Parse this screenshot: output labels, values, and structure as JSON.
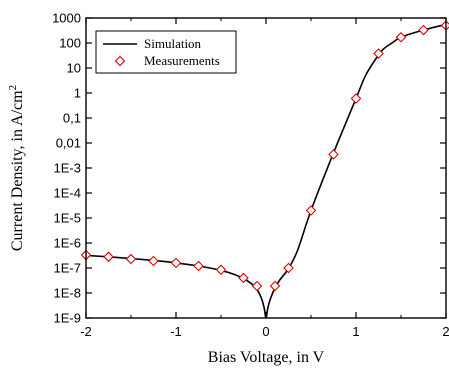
{
  "chart_data": {
    "type": "line",
    "xlabel": "Bias Voltage, in V",
    "ylabel_main": "Current Density, in A/cm",
    "ylabel_sup": "2",
    "xlim": [
      -2,
      2
    ],
    "ylim": [
      1e-09,
      1000
    ],
    "yscale": "log",
    "x_ticks": [
      -2,
      -1,
      0,
      1,
      2
    ],
    "x_tick_labels": [
      "-2",
      "-1",
      "0",
      "1",
      "2"
    ],
    "y_ticks": [
      1000,
      100,
      10,
      1,
      0.1,
      0.01,
      0.001,
      0.0001,
      1e-05,
      1e-06,
      1e-07,
      1e-08,
      1e-09
    ],
    "y_tick_labels": [
      "1000",
      "100",
      "10",
      "1",
      "0,1",
      "0,01",
      "1E-3",
      "1E-4",
      "1E-5",
      "1E-6",
      "1E-7",
      "1E-8",
      "1E-9"
    ],
    "grid": false,
    "legend_position": "top-left",
    "series": [
      {
        "name": "Simulation",
        "style": "line",
        "color": "#000000",
        "x": [
          -2.0,
          -1.75,
          -1.5,
          -1.25,
          -1.0,
          -0.75,
          -0.5,
          -0.35,
          -0.25,
          -0.15,
          -0.1,
          -0.05,
          -0.02,
          0.0,
          0.02,
          0.05,
          0.1,
          0.15,
          0.25,
          0.35,
          0.5,
          0.75,
          1.0,
          1.1,
          1.2,
          1.3,
          1.4,
          1.5,
          1.75,
          2.0
        ],
        "y": [
          3.2e-07,
          2.8e-07,
          2.4e-07,
          2e-07,
          1.6e-07,
          1.2e-07,
          8e-08,
          5.5e-08,
          3.8e-08,
          2.2e-08,
          1.4e-08,
          6e-09,
          2.5e-09,
          1e-09,
          2.5e-09,
          6e-09,
          1.6e-08,
          3.2e-08,
          9.5e-08,
          5e-07,
          2e-05,
          0.004,
          0.6,
          4.5,
          18,
          55,
          100,
          170,
          330,
          560
        ]
      },
      {
        "name": "Measurements",
        "style": "marker",
        "marker": "diamond",
        "color": "#e00000",
        "x": [
          -2.0,
          -1.75,
          -1.5,
          -1.25,
          -1.0,
          -0.75,
          -0.5,
          -0.25,
          -0.1,
          0.1,
          0.25,
          0.5,
          0.75,
          1.0,
          1.25,
          1.5,
          1.75,
          2.0
        ],
        "y": [
          3.3e-07,
          2.8e-07,
          2.3e-07,
          1.9e-07,
          1.6e-07,
          1.2e-07,
          8.5e-08,
          4e-08,
          1.9e-08,
          1.9e-08,
          1e-07,
          2e-05,
          0.0035,
          0.6,
          38,
          170,
          330,
          500
        ]
      }
    ]
  }
}
